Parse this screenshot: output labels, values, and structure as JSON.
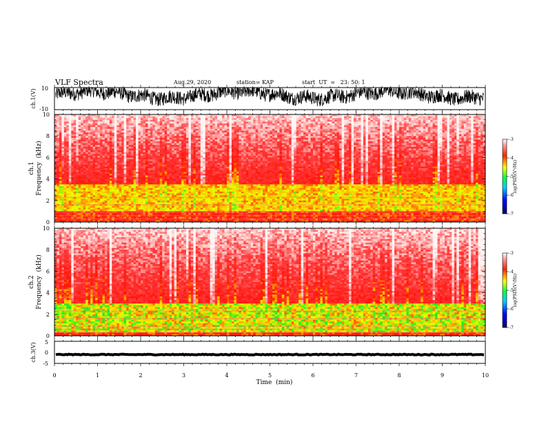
{
  "header": {
    "title": "VLF Spectra",
    "date": "Aug.29, 2020",
    "station": "station= KAP",
    "start": "start  UT  =   23: 50: 1"
  },
  "colors": {
    "frame": "#000000",
    "background": "#ffffff",
    "spectrum_low": "#e8f8ff",
    "spectrum_high": "#ff0000",
    "spectrum_band_ch1": "#ffe600",
    "spectrum_band_ch2": "#33ee33"
  },
  "chart_data": [
    {
      "name": "ch1-waveform",
      "type": "line",
      "ylabel": "ch.1(V)",
      "ylim": [
        -10,
        10
      ],
      "yticks": [
        "10",
        "-10"
      ],
      "xlim": [
        0,
        10
      ],
      "waveform_level": "oscillates between about -3 and 10 V"
    },
    {
      "name": "ch1-spectrogram",
      "type": "heatmap",
      "ylabel_channel": "ch.1",
      "ylabel": "Frequency  (kHz)",
      "ylim": [
        0,
        10
      ],
      "yticks": [
        "0",
        "2",
        "4",
        "6",
        "8",
        "10"
      ],
      "xlim": [
        0,
        10
      ],
      "dominant_band_khz": [
        1.0,
        3.5
      ],
      "colorbar": {
        "label": "log(PSD)(V²/Hz)",
        "range": [
          -7,
          -3
        ],
        "ticks": [
          "-3",
          "-4",
          "-5",
          "-6",
          "-7"
        ]
      }
    },
    {
      "name": "ch2-spectrogram",
      "type": "heatmap",
      "ylabel_channel": "ch.2",
      "ylabel": "Frequency  (kHz)",
      "ylim": [
        0,
        10
      ],
      "yticks": [
        "0",
        "2",
        "4",
        "6",
        "8",
        "10"
      ],
      "xlim": [
        0,
        10
      ],
      "dominant_band_khz": [
        0.3,
        3.0
      ],
      "colorbar": {
        "label": "log(PSD)(V²/Hz)",
        "range": [
          -7,
          -3
        ],
        "ticks": [
          "-3",
          "-4",
          "-5",
          "-6",
          "-7"
        ]
      }
    },
    {
      "name": "ch3-waveform",
      "type": "line",
      "ylabel": "ch.3(V)",
      "ylim": [
        -5,
        5
      ],
      "yticks": [
        "5",
        "0",
        "-5"
      ],
      "xlim": [
        0,
        10
      ],
      "waveform_level": "near -1 V"
    }
  ],
  "xaxis": {
    "label": "Time  (min)",
    "range": [
      0,
      10
    ],
    "ticks": [
      "0",
      "1",
      "2",
      "3",
      "4",
      "5",
      "6",
      "7",
      "8",
      "9",
      "10"
    ]
  }
}
